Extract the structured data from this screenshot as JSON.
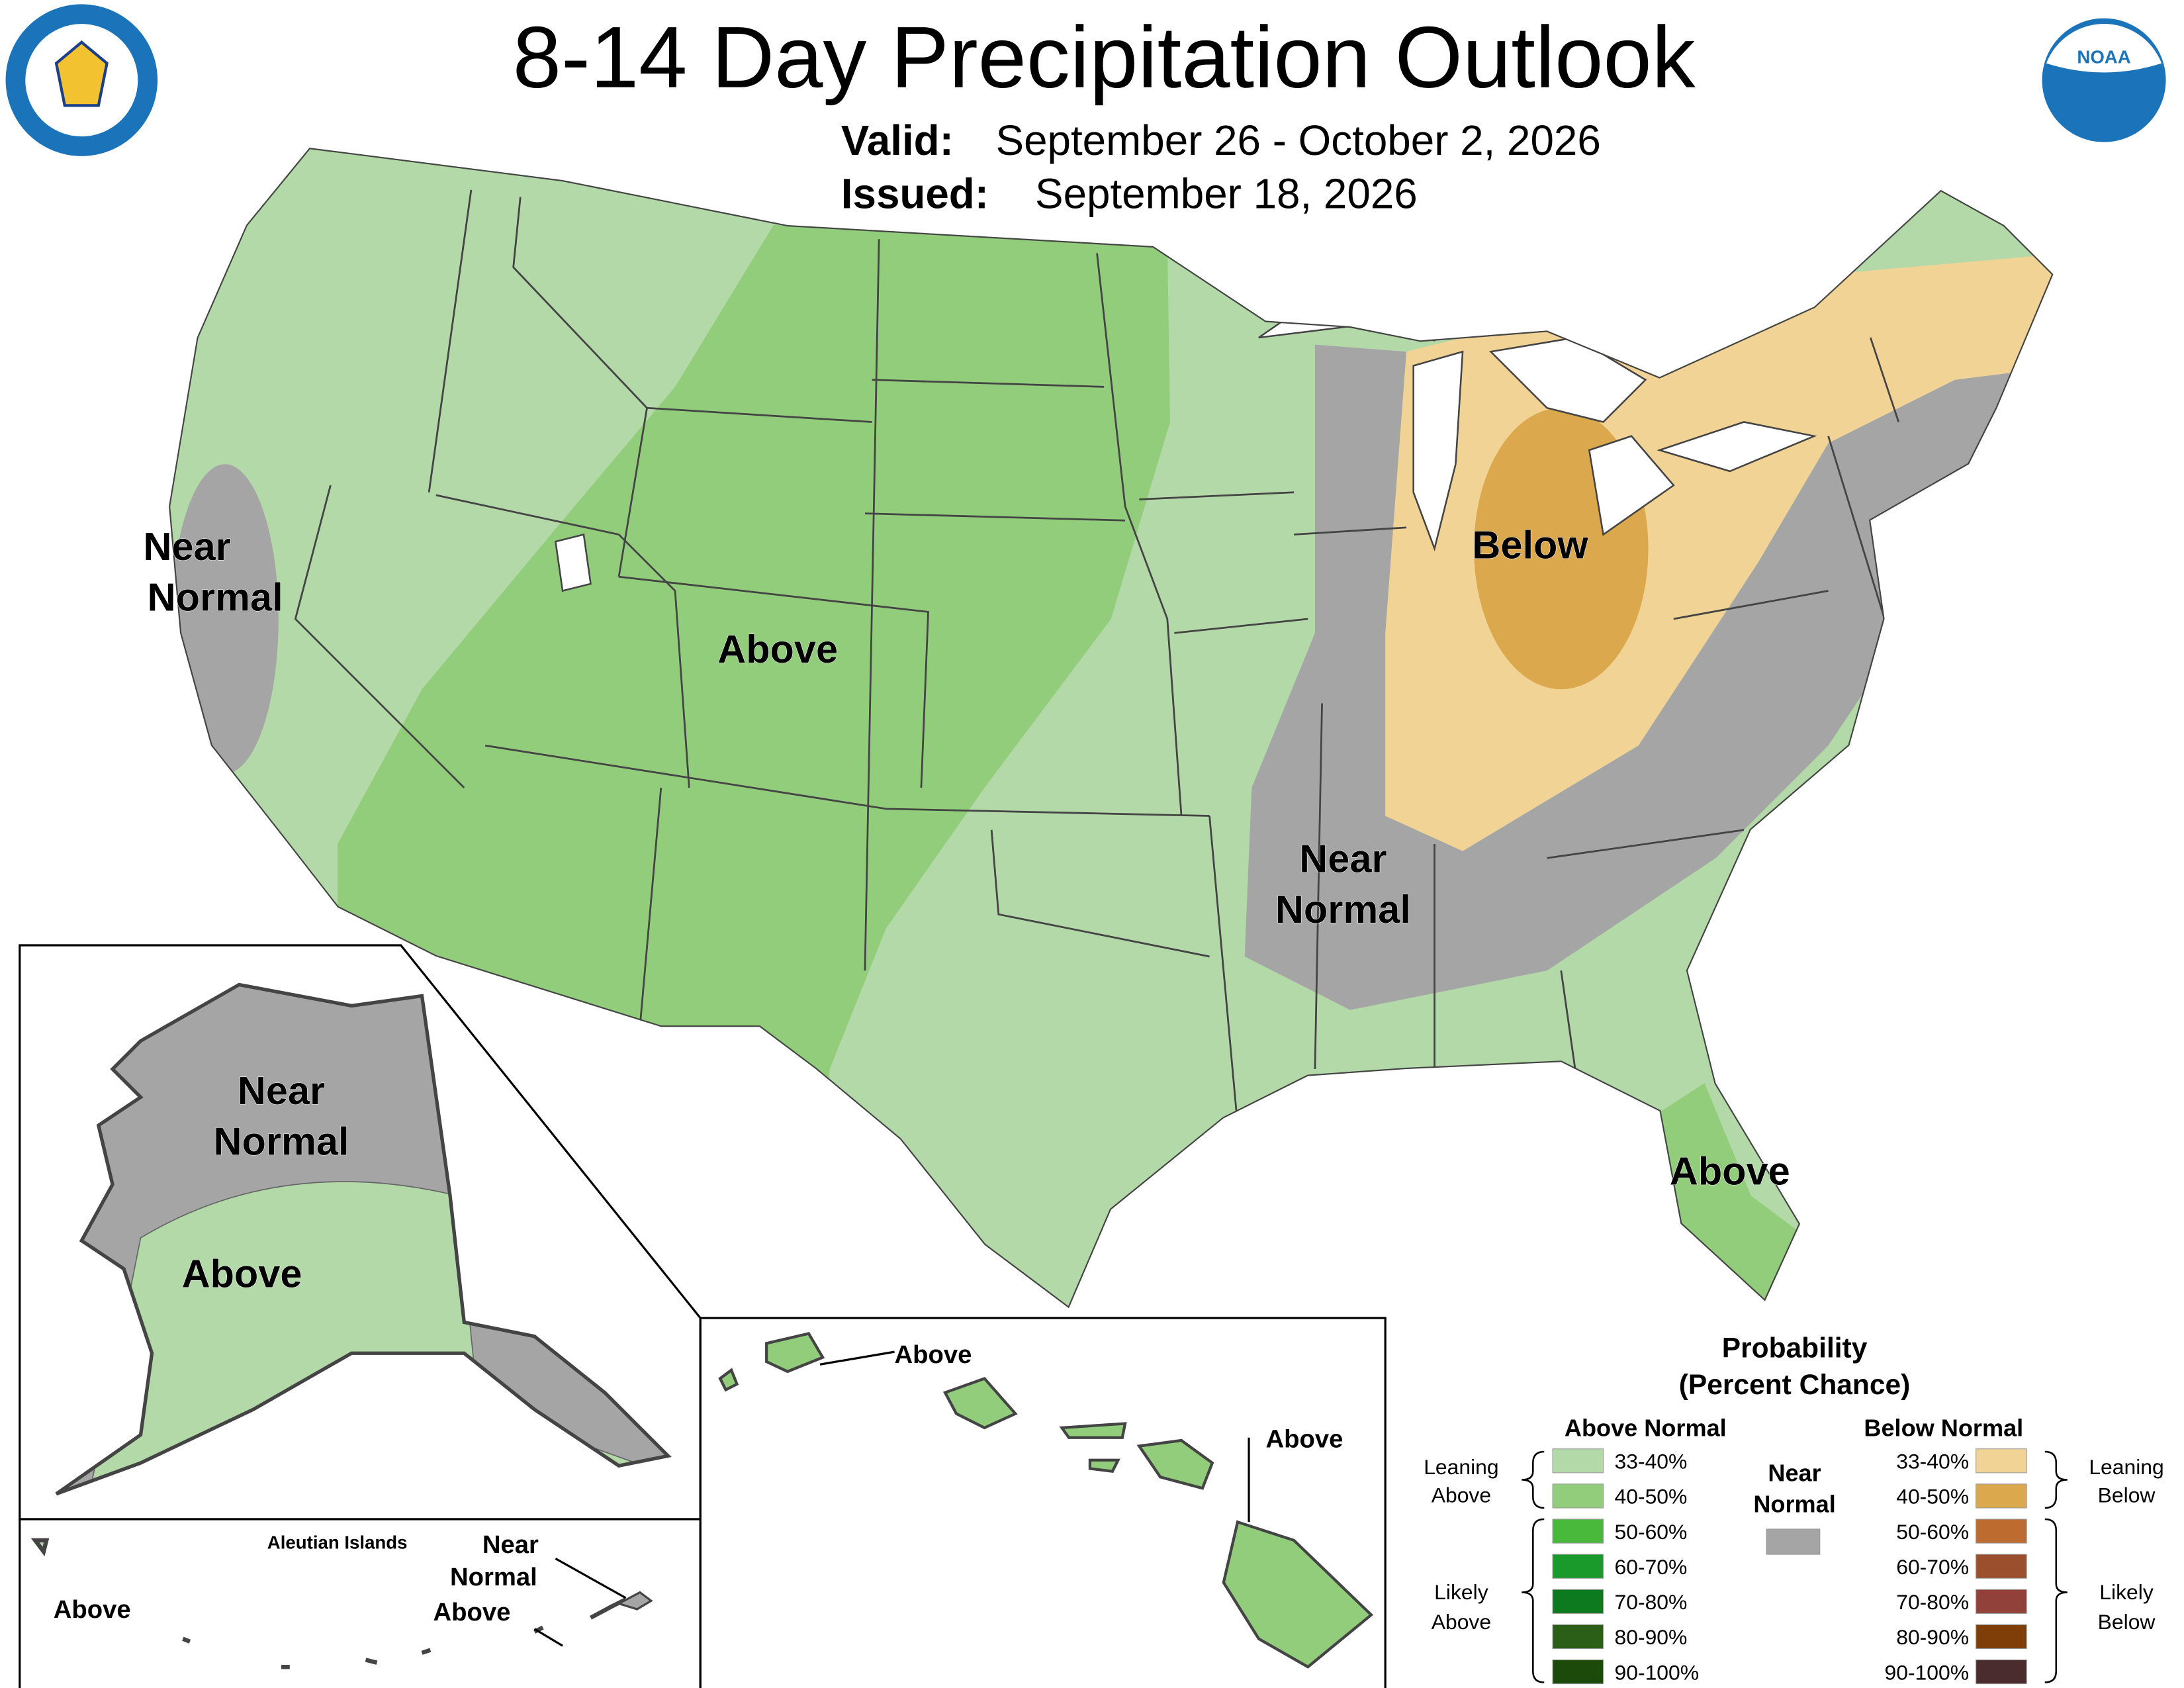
{
  "header": {
    "title": "8-14 Day Precipitation Outlook",
    "valid_label": "Valid:",
    "valid_value": "September 26 - October 2, 2026",
    "issued_label": "Issued:",
    "issued_value": "September 18, 2026",
    "logo_text": "NOAA"
  },
  "map": {
    "labels": [
      {
        "lines": [
          "Near",
          "Normal"
        ]
      },
      {
        "lines": [
          "Above"
        ]
      },
      {
        "lines": [
          "Below"
        ]
      },
      {
        "lines": [
          "Near",
          "Normal"
        ]
      },
      {
        "lines": [
          "Above"
        ]
      }
    ]
  },
  "alaska": {
    "labels": [
      {
        "lines": [
          "Near",
          "Normal"
        ]
      },
      {
        "lines": [
          "Above"
        ]
      }
    ]
  },
  "aleutians": {
    "title": "Aleutian Islands",
    "labels": [
      {
        "lines": [
          "Above"
        ]
      },
      {
        "lines": [
          "Near",
          "Normal"
        ]
      },
      {
        "lines": [
          "Above"
        ]
      }
    ]
  },
  "hawaii": {
    "labels": [
      {
        "lines": [
          "Above"
        ]
      },
      {
        "lines": [
          "Above"
        ]
      }
    ]
  },
  "legend": {
    "title": [
      "Probability",
      "(Percent Chance)"
    ],
    "above": {
      "heading": "Above Normal",
      "items": [
        {
          "label": "33-40%",
          "color": "#b3d9a9"
        },
        {
          "label": "40-50%",
          "color": "#92cd7c"
        },
        {
          "label": "50-60%",
          "color": "#48b93a"
        },
        {
          "label": "60-70%",
          "color": "#1a9a2a"
        },
        {
          "label": "70-80%",
          "color": "#0e7a1f"
        },
        {
          "label": "80-90%",
          "color": "#2b5e17"
        },
        {
          "label": "90-100%",
          "color": "#1c4a0b"
        }
      ],
      "leaning": [
        "Leaning",
        "Above"
      ],
      "likely": [
        "Likely",
        "Above"
      ]
    },
    "near": {
      "heading": [
        "Near",
        "Normal"
      ],
      "color": "#a5a5a5"
    },
    "below": {
      "heading": "Below Normal",
      "items": [
        {
          "label": "33-40%",
          "color": "#f1d495"
        },
        {
          "label": "40-50%",
          "color": "#dba84d"
        },
        {
          "label": "50-60%",
          "color": "#bd6b2f"
        },
        {
          "label": "60-70%",
          "color": "#9c4f2c"
        },
        {
          "label": "70-80%",
          "color": "#91403a"
        },
        {
          "label": "80-90%",
          "color": "#7f3e07"
        },
        {
          "label": "90-100%",
          "color": "#4a2b2e"
        }
      ],
      "leaning": [
        "Leaning",
        "Below"
      ],
      "likely": [
        "Likely",
        "Below"
      ]
    }
  }
}
